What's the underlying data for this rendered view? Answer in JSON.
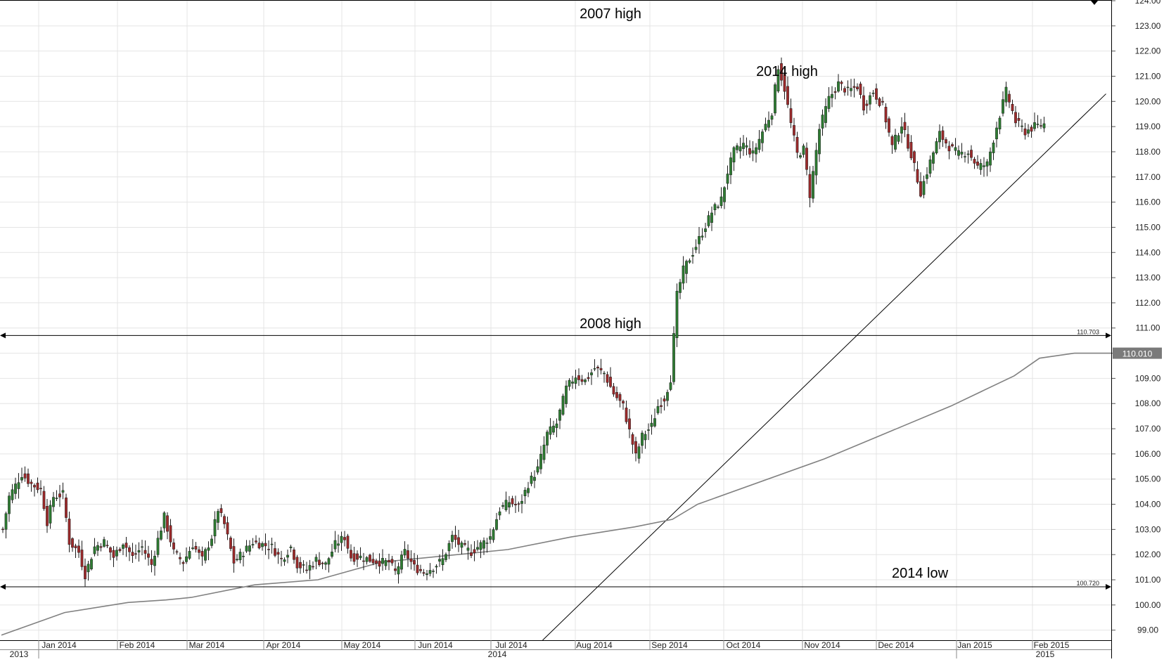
{
  "chart_data": {
    "type": "candlestick",
    "title": "",
    "xlabel": "",
    "ylabel": "",
    "ylim": [
      98.6,
      124.0
    ],
    "grid": true,
    "y_ticks": [
      "99.00",
      "100.00",
      "101.00",
      "102.00",
      "103.00",
      "104.00",
      "105.00",
      "106.00",
      "107.00",
      "108.00",
      "109.00",
      "110.00",
      "111.00",
      "112.00",
      "113.00",
      "114.00",
      "115.00",
      "116.00",
      "117.00",
      "118.00",
      "119.00",
      "120.00",
      "121.00",
      "122.00",
      "123.00",
      "124.00"
    ],
    "month_labels": [
      "Jan 2014",
      "Feb 2014",
      "Mar 2014",
      "Apr 2014",
      "May 2014",
      "Jun 2014",
      "Jul 2014",
      "Aug 2014",
      "Sep 2014",
      "Oct 2014",
      "Nov 2014",
      "Dec 2014",
      "Jan 2015",
      "Feb 2015"
    ],
    "year_labels": [
      "2013",
      "2014",
      "2015"
    ],
    "current_price_label": "110.010",
    "horizontal_levels": [
      {
        "value": 110.703,
        "label": "110.703"
      },
      {
        "value": 100.72,
        "label": "100.720"
      }
    ],
    "annotations": [
      {
        "text": "2007 high"
      },
      {
        "text": "2014 high"
      },
      {
        "text": "2008 high"
      },
      {
        "text": "2014 low"
      }
    ],
    "close_path": [
      [
        0,
        103.0
      ],
      [
        2,
        104.3
      ],
      [
        6,
        105.2
      ],
      [
        9,
        104.8
      ],
      [
        12,
        104.6
      ],
      [
        14,
        103.3
      ],
      [
        16,
        104.3
      ],
      [
        19,
        104.4
      ],
      [
        21,
        102.5
      ],
      [
        24,
        102.1
      ],
      [
        26,
        101.2
      ],
      [
        29,
        102.3
      ],
      [
        32,
        102.5
      ],
      [
        35,
        101.9
      ],
      [
        38,
        102.5
      ],
      [
        41,
        101.9
      ],
      [
        44,
        102.3
      ],
      [
        47,
        101.6
      ],
      [
        49,
        102.6
      ],
      [
        51,
        103.5
      ],
      [
        54,
        102.1
      ],
      [
        57,
        101.7
      ],
      [
        60,
        102.4
      ],
      [
        63,
        101.8
      ],
      [
        66,
        102.7
      ],
      [
        68,
        103.8
      ],
      [
        70,
        103.2
      ],
      [
        73,
        101.7
      ],
      [
        76,
        102.1
      ],
      [
        79,
        102.5
      ],
      [
        82,
        102.4
      ],
      [
        85,
        102.3
      ],
      [
        88,
        101.8
      ],
      [
        91,
        102.3
      ],
      [
        93,
        101.6
      ],
      [
        96,
        101.4
      ],
      [
        99,
        101.8
      ],
      [
        102,
        101.6
      ],
      [
        105,
        102.4
      ],
      [
        108,
        102.7
      ],
      [
        110,
        101.9
      ],
      [
        113,
        101.9
      ],
      [
        116,
        101.8
      ],
      [
        119,
        101.7
      ],
      [
        122,
        101.7
      ],
      [
        124,
        101.3
      ],
      [
        127,
        102.1
      ],
      [
        130,
        101.5
      ],
      [
        133,
        101.3
      ],
      [
        136,
        101.5
      ],
      [
        139,
        101.8
      ],
      [
        142,
        102.7
      ],
      [
        145,
        102.3
      ],
      [
        148,
        102.1
      ],
      [
        151,
        102.4
      ],
      [
        154,
        102.7
      ],
      [
        157,
        103.8
      ],
      [
        160,
        104.1
      ],
      [
        163,
        103.9
      ],
      [
        166,
        104.8
      ],
      [
        169,
        105.4
      ],
      [
        172,
        106.8
      ],
      [
        175,
        107.2
      ],
      [
        178,
        108.6
      ],
      [
        181,
        109.1
      ],
      [
        184,
        108.9
      ],
      [
        187,
        109.4
      ],
      [
        190,
        109.2
      ],
      [
        193,
        108.4
      ],
      [
        196,
        107.9
      ],
      [
        198,
        106.9
      ],
      [
        200,
        105.9
      ],
      [
        202,
        106.7
      ],
      [
        205,
        107.1
      ],
      [
        207,
        107.9
      ],
      [
        209,
        108.2
      ],
      [
        211,
        109.0
      ],
      [
        213,
        112.3
      ],
      [
        215,
        113.3
      ],
      [
        218,
        114.0
      ],
      [
        221,
        114.8
      ],
      [
        224,
        115.6
      ],
      [
        227,
        116.1
      ],
      [
        229,
        117.2
      ],
      [
        231,
        118.0
      ],
      [
        234,
        118.3
      ],
      [
        237,
        117.9
      ],
      [
        240,
        118.8
      ],
      [
        243,
        119.6
      ],
      [
        245,
        121.4
      ],
      [
        247,
        120.5
      ],
      [
        249,
        119.1
      ],
      [
        251,
        117.9
      ],
      [
        253,
        118.1
      ],
      [
        255,
        116.3
      ],
      [
        258,
        118.9
      ],
      [
        261,
        120.1
      ],
      [
        264,
        120.7
      ],
      [
        267,
        120.4
      ],
      [
        270,
        120.6
      ],
      [
        272,
        119.8
      ],
      [
        275,
        120.4
      ],
      [
        278,
        119.8
      ],
      [
        281,
        118.2
      ],
      [
        284,
        119.1
      ],
      [
        287,
        117.9
      ],
      [
        290,
        116.4
      ],
      [
        293,
        117.6
      ],
      [
        296,
        118.7
      ],
      [
        299,
        118.2
      ],
      [
        302,
        117.9
      ],
      [
        305,
        118.0
      ],
      [
        308,
        117.4
      ],
      [
        311,
        117.5
      ],
      [
        314,
        119.0
      ],
      [
        317,
        120.4
      ],
      [
        320,
        119.2
      ],
      [
        323,
        118.8
      ],
      [
        326,
        119.0
      ],
      [
        329,
        119.1
      ]
    ],
    "moving_average": [
      [
        0,
        98.8
      ],
      [
        20,
        99.7
      ],
      [
        40,
        100.1
      ],
      [
        52,
        100.2
      ],
      [
        60,
        100.3
      ],
      [
        80,
        100.8
      ],
      [
        100,
        101.0
      ],
      [
        120,
        101.7
      ],
      [
        160,
        102.2
      ],
      [
        180,
        102.7
      ],
      [
        190,
        102.9
      ],
      [
        200,
        103.1
      ],
      [
        212,
        103.4
      ],
      [
        220,
        104.0
      ],
      [
        260,
        105.8
      ],
      [
        300,
        107.9
      ],
      [
        320,
        109.1
      ],
      [
        328,
        109.8
      ],
      [
        339,
        110.0
      ]
    ],
    "trendline": [
      [
        171,
        98.6
      ],
      [
        349,
        120.3
      ]
    ]
  }
}
